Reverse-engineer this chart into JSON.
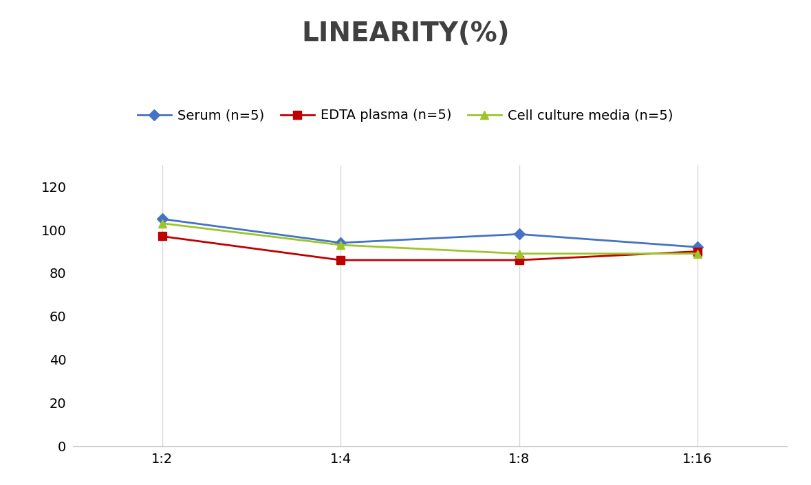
{
  "title": "LINEARITY(%)",
  "title_fontsize": 28,
  "title_fontweight": "bold",
  "title_color": "#404040",
  "x_labels": [
    "1:2",
    "1:4",
    "1:8",
    "1:16"
  ],
  "x_positions": [
    0,
    1,
    2,
    3
  ],
  "series": [
    {
      "label": "Serum (n=5)",
      "values": [
        105,
        94,
        98,
        92
      ],
      "color": "#4472C4",
      "marker": "D",
      "markersize": 8,
      "linewidth": 2
    },
    {
      "label": "EDTA plasma (n=5)",
      "values": [
        97,
        86,
        86,
        90
      ],
      "color": "#C00000",
      "marker": "s",
      "markersize": 8,
      "linewidth": 2
    },
    {
      "label": "Cell culture media (n=5)",
      "values": [
        103,
        93,
        89,
        89
      ],
      "color": "#9DC52B",
      "marker": "^",
      "markersize": 9,
      "linewidth": 2
    }
  ],
  "ylim": [
    0,
    130
  ],
  "yticks": [
    0,
    20,
    40,
    60,
    80,
    100,
    120
  ],
  "grid_color": "#D9D9D9",
  "background_color": "#FFFFFF",
  "legend_fontsize": 14,
  "tick_fontsize": 14
}
